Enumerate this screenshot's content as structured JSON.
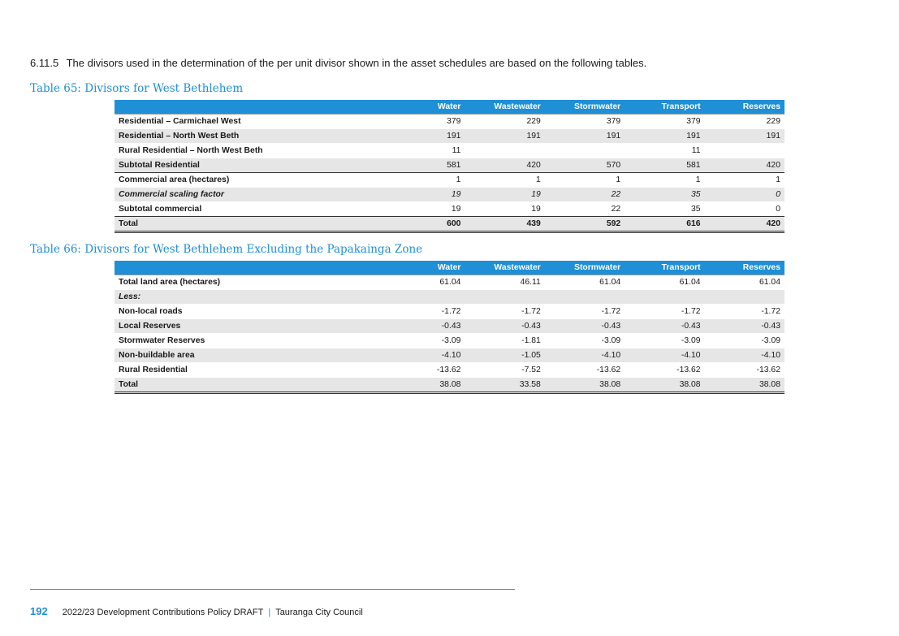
{
  "intro": {
    "number": "6.11.5",
    "text": "The divisors used in the determination of the per unit divisor shown in the asset schedules are based on the following tables."
  },
  "table1": {
    "caption": "Table 65: Divisors for West Bethlehem",
    "headers": [
      "",
      "Water",
      "Wastewater",
      "Stormwater",
      "Transport",
      "Reserves"
    ],
    "rows": [
      {
        "label": "Residential – Carmichael West",
        "values": [
          "379",
          "229",
          "379",
          "379",
          "229"
        ]
      },
      {
        "label": "Residential – North West Beth",
        "values": [
          "191",
          "191",
          "191",
          "191",
          "191"
        ]
      },
      {
        "label": "Rural Residential – North West Beth",
        "values": [
          "11",
          "",
          "",
          "11",
          ""
        ]
      },
      {
        "label": "Subtotal Residential",
        "values": [
          "581",
          "420",
          "570",
          "581",
          "420"
        ]
      },
      {
        "label": "Commercial area (hectares)",
        "values": [
          "1",
          "1",
          "1",
          "1",
          "1"
        ]
      },
      {
        "label": "Commercial scaling factor",
        "values": [
          "19",
          "19",
          "22",
          "35",
          "0"
        ]
      },
      {
        "label": "Subtotal commercial",
        "values": [
          "19",
          "19",
          "22",
          "35",
          "0"
        ]
      },
      {
        "label": "Total",
        "values": [
          "600",
          "439",
          "592",
          "616",
          "420"
        ]
      }
    ]
  },
  "table2": {
    "caption": "Table 66: Divisors for West Bethlehem Excluding the Papakainga Zone",
    "headers": [
      "",
      "Water",
      "Wastewater",
      "Stormwater",
      "Transport",
      "Reserves"
    ],
    "rows": [
      {
        "label": "Total land area (hectares)",
        "values": [
          "61.04",
          "46.11",
          "61.04",
          "61.04",
          "61.04"
        ]
      },
      {
        "label": "Less:",
        "values": [
          "",
          "",
          "",
          "",
          ""
        ]
      },
      {
        "label": "Non-local roads",
        "values": [
          "-1.72",
          "-1.72",
          "-1.72",
          "-1.72",
          "-1.72"
        ]
      },
      {
        "label": "Local Reserves",
        "values": [
          "-0.43",
          "-0.43",
          "-0.43",
          "-0.43",
          "-0.43"
        ]
      },
      {
        "label": "Stormwater Reserves",
        "values": [
          "-3.09",
          "-1.81",
          "-3.09",
          "-3.09",
          "-3.09"
        ]
      },
      {
        "label": "Non-buildable area",
        "values": [
          "-4.10",
          "-1.05",
          "-4.10",
          "-4.10",
          "-4.10"
        ]
      },
      {
        "label": "Rural Residential",
        "values": [
          "-13.62",
          "-7.52",
          "-13.62",
          "-13.62",
          "-13.62"
        ]
      },
      {
        "label": "Total",
        "values": [
          "38.08",
          "33.58",
          "38.08",
          "38.08",
          "38.08"
        ]
      }
    ]
  },
  "footer": {
    "page_number": "192",
    "document": "2022/23 Development Contributions Policy DRAFT",
    "separator": "|",
    "organisation": "Tauranga City Council"
  }
}
